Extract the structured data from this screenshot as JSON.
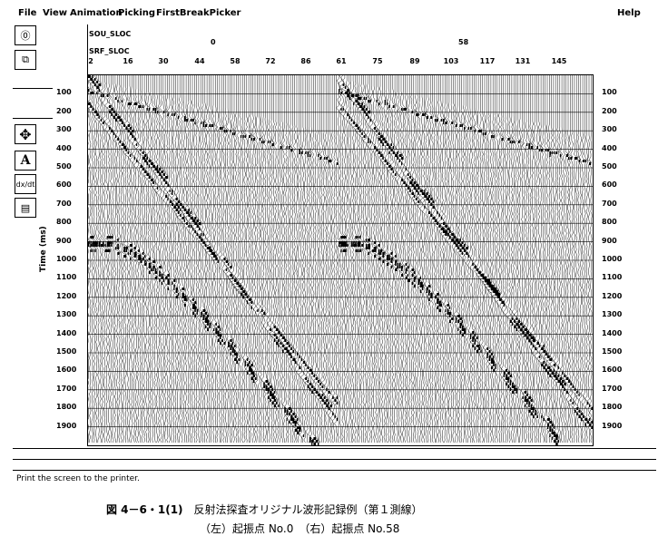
{
  "menubar": {
    "items": [
      {
        "label": "File",
        "u": "F"
      },
      {
        "label": "View",
        "u": "V"
      },
      {
        "label": "Animation",
        "u": "A"
      },
      {
        "label": "Picking",
        "u": "P"
      },
      {
        "label": "FirstBreakPicker",
        "u": "B"
      }
    ],
    "help": "Help"
  },
  "header": {
    "sou_label": "SOU_SLOC",
    "srf_label": "SRF_SLOC",
    "shot_left": "0",
    "shot_right": "58",
    "traces": [
      "2",
      "16",
      "30",
      "44",
      "58",
      "72",
      "86",
      "61",
      "75",
      "89",
      "103",
      "117",
      "131",
      "145"
    ]
  },
  "axis": {
    "title": "Time (ms)",
    "ticks": [
      "100",
      "200",
      "300",
      "400",
      "500",
      "600",
      "700",
      "800",
      "900",
      "1000",
      "1100",
      "1200",
      "1300",
      "1400",
      "1500",
      "1600",
      "1700",
      "1800",
      "1900"
    ]
  },
  "status": "Print the screen to the printer.",
  "caption": {
    "number": "図 4－6・1(1)",
    "line1": "反射法探査オリジナル波形記録例（第１測線）",
    "line2": "（左）起振点 No.0　（右）起振点 No.58"
  }
}
